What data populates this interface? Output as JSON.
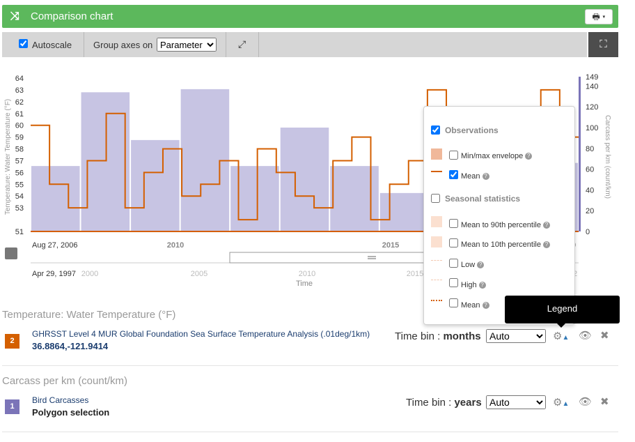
{
  "header": {
    "title": "Comparison chart",
    "shuffle_icon": "shuffle-icon",
    "print_icon": "print-icon"
  },
  "toolbar": {
    "autoscale_label": "Autoscale",
    "autoscale_checked": true,
    "group_axes_label": "Group axes on",
    "group_axes_value": "Parameter",
    "expand_icon": "expand-icon",
    "fullscreen_icon": "fullscreen-icon"
  },
  "chart_data": {
    "type": "bar",
    "left_axis": {
      "label": "Temperature: Water Temperature (°F)",
      "ticks": [
        "64",
        "63",
        "62",
        "61",
        "60",
        "59",
        "58",
        "57",
        "56",
        "55",
        "54",
        "53",
        "51"
      ]
    },
    "right_axis": {
      "label": "Carcass per km (count/km)",
      "ticks": [
        "149",
        "140",
        "120",
        "100",
        "80",
        "60",
        "40",
        "20",
        "0"
      ]
    },
    "x_axis_labels": [
      "Aug 27, 2006",
      "2010",
      "2015",
      "9"
    ],
    "navigator": {
      "labels": [
        "Apr 29, 1997",
        "2000",
        "2005",
        "2010",
        "2015",
        "2"
      ],
      "title": "Time"
    },
    "series": [
      {
        "name": "Bird Carcasses",
        "color": "#c7c4e3",
        "values": [
          63,
          134,
          88,
          137,
          63,
          100,
          63,
          37,
          66,
          101,
          66
        ]
      },
      {
        "name": "Mean",
        "color": "#d45f00",
        "values": [
          60,
          55,
          53,
          57,
          61,
          53,
          56,
          58,
          54,
          55,
          57,
          52,
          58,
          56,
          54,
          53,
          57,
          59,
          52,
          55,
          57,
          63,
          58,
          55,
          61,
          57,
          54,
          63,
          59
        ]
      }
    ]
  },
  "legend": {
    "observations": "Observations",
    "minmax": "Min/max envelope",
    "mean": "Mean",
    "seasonal": "Seasonal statistics",
    "p90": "Mean to 90th percentile",
    "p10": "Mean to 10th percentile",
    "low": "Low",
    "high": "High",
    "mean2": "Mean",
    "tooltip": "Legend"
  },
  "datasets": [
    {
      "section": "Temperature: Water Temperature (°F)",
      "badge": "2",
      "badge_color": "#d45f00",
      "name": "GHRSST Level 4 MUR Global Foundation Sea Surface Temperature Analysis (.01deg/1km)",
      "sub": "36.8864,-121.9414",
      "time_bin_label": "Time bin :",
      "time_bin_unit": "months",
      "time_bin_value": "Auto"
    },
    {
      "section": "Carcass per km (count/km)",
      "badge": "1",
      "badge_color": "#7b74b8",
      "name": "Bird Carcasses",
      "sub": "Polygon selection",
      "time_bin_label": "Time bin :",
      "time_bin_unit": "years",
      "time_bin_value": "Auto"
    }
  ]
}
